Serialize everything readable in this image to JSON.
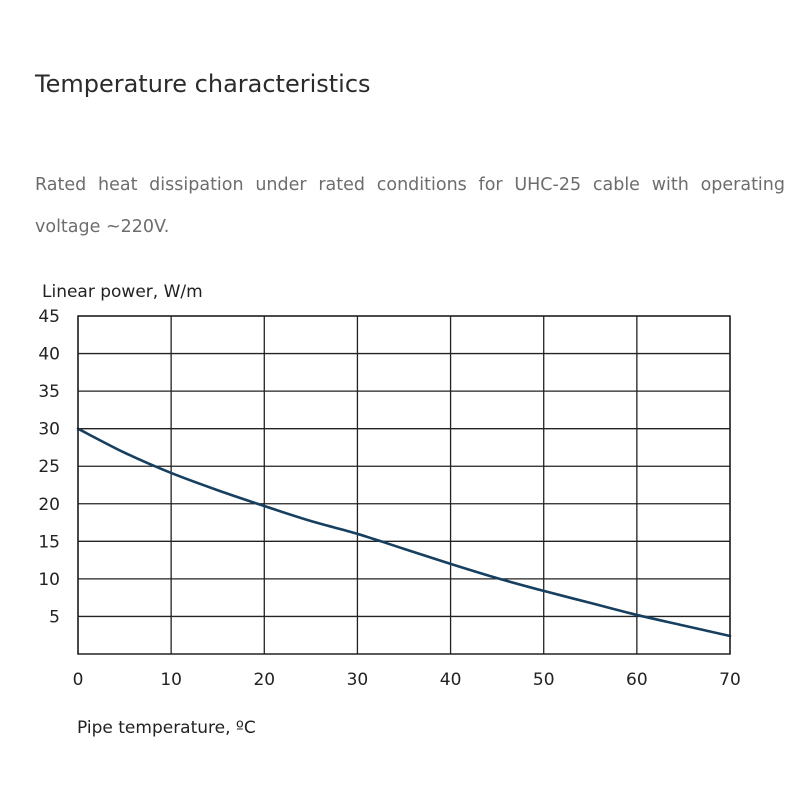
{
  "heading": "Temperature characteristics",
  "description": "Rated heat dissipation under rated conditions for UHC-25 cable with operating voltage ~220V.",
  "chart_data": {
    "type": "line",
    "ylabel": "Linear power, W/m",
    "xlabel": "Pipe temperature, ºC",
    "xlim": [
      0,
      70
    ],
    "ylim": [
      0,
      45
    ],
    "x_ticks": [
      0,
      10,
      20,
      30,
      40,
      50,
      60,
      70
    ],
    "y_ticks": [
      5,
      10,
      15,
      20,
      25,
      30,
      35,
      40,
      45
    ],
    "grid": true,
    "series": [
      {
        "color": "#173f5f",
        "x": [
          0,
          5,
          10,
          15,
          20,
          25,
          30,
          35,
          40,
          45,
          50,
          55,
          60,
          65,
          70
        ],
        "y": [
          30,
          26.8,
          24.1,
          21.8,
          19.7,
          17.7,
          16.0,
          14.0,
          12.0,
          10.1,
          8.4,
          6.8,
          5.2,
          3.8,
          2.4
        ]
      }
    ]
  }
}
